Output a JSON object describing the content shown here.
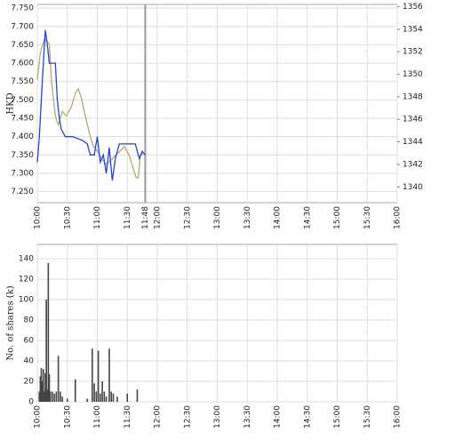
{
  "chart_data": [
    {
      "type": "line",
      "y_label": "HKD",
      "current_time": "11:48",
      "xlim": [
        "10:00",
        "16:00"
      ],
      "xticks": [
        "10:00",
        "10:30",
        "11:00",
        "11:30",
        "12:00",
        "12:30",
        "13:00",
        "13:30",
        "14:00",
        "14:30",
        "15:00",
        "15:30",
        "16:00"
      ],
      "ylim": [
        7.22,
        7.76
      ],
      "yticks": [
        {
          "value": 7.25,
          "label": "7.250"
        },
        {
          "value": 7.3,
          "label": "7.300"
        },
        {
          "value": 7.35,
          "label": "7.350"
        },
        {
          "value": 7.4,
          "label": "7.400"
        },
        {
          "value": 7.45,
          "label": "7.450"
        },
        {
          "value": 7.5,
          "label": "7.500"
        },
        {
          "value": 7.55,
          "label": "7.550"
        },
        {
          "value": 7.6,
          "label": "7.600"
        },
        {
          "value": 7.65,
          "label": "7.650"
        },
        {
          "value": 7.7,
          "label": "7.700"
        },
        {
          "value": 7.75,
          "label": "7.750"
        }
      ],
      "y2lim": [
        1338.6,
        1356.2
      ],
      "y2ticks": [
        1340,
        1342,
        1344,
        1346,
        1348,
        1350,
        1352,
        1354,
        1356
      ],
      "grid": true,
      "series": [
        {
          "color": "#b5a86a",
          "axis": "y2",
          "x": [
            "10:00",
            "10:03",
            "10:07",
            "10:12",
            "10:14",
            "10:18",
            "10:21",
            "10:25",
            "10:29",
            "10:34",
            "10:38",
            "10:41",
            "10:44",
            "10:47",
            "10:52",
            "10:56",
            "11:00",
            "11:05",
            "11:09",
            "11:14",
            "11:18",
            "11:23",
            "11:27",
            "11:32",
            "11:36",
            "11:39",
            "11:41",
            "11:43",
            "11:48"
          ],
          "values": [
            1349.5,
            1351.9,
            1353.1,
            1352.7,
            1349.5,
            1346.3,
            1345.5,
            1346.7,
            1346.3,
            1347.1,
            1348.3,
            1348.7,
            1347.9,
            1346.7,
            1344.8,
            1343.6,
            1343.2,
            1342.4,
            1342.0,
            1342.4,
            1342.8,
            1343.2,
            1343.6,
            1342.8,
            1341.6,
            1340.8,
            1340.8,
            1342.8,
            1343.0
          ]
        },
        {
          "color": "#2244dd",
          "x": [
            "10:00",
            "10:02",
            "10:05",
            "10:08",
            "10:10",
            "10:12",
            "10:15",
            "10:18",
            "10:20",
            "10:22",
            "10:24",
            "10:28",
            "10:35",
            "10:45",
            "10:50",
            "10:53",
            "10:57",
            "11:00",
            "11:03",
            "11:06",
            "11:09",
            "11:12",
            "11:15",
            "11:18",
            "11:22",
            "11:30",
            "11:38",
            "11:42",
            "11:45",
            "11:48"
          ],
          "values": [
            7.33,
            7.4,
            7.55,
            7.69,
            7.65,
            7.6,
            7.6,
            7.6,
            7.5,
            7.45,
            7.42,
            7.4,
            7.4,
            7.39,
            7.38,
            7.35,
            7.35,
            7.4,
            7.33,
            7.35,
            7.3,
            7.37,
            7.28,
            7.34,
            7.38,
            7.38,
            7.38,
            7.34,
            7.36,
            7.35
          ]
        }
      ]
    },
    {
      "type": "bar",
      "y_label": "No. of shares (k)",
      "xlim": [
        "10:00",
        "16:00"
      ],
      "xticks": [
        "10:00",
        "10:30",
        "11:00",
        "11:30",
        "12:00",
        "12:30",
        "13:00",
        "13:30",
        "14:00",
        "14:30",
        "15:00",
        "15:30",
        "16:00"
      ],
      "ylim": [
        0,
        154
      ],
      "yticks": [
        0,
        20,
        40,
        60,
        80,
        100,
        120,
        140
      ],
      "grid": true,
      "color": "#444444",
      "x": [
        "10:02",
        "10:03",
        "10:04",
        "10:05",
        "10:06",
        "10:07",
        "10:08",
        "10:09",
        "10:10",
        "10:11",
        "10:12",
        "10:13",
        "10:15",
        "10:17",
        "10:19",
        "10:21",
        "10:23",
        "10:25",
        "10:30",
        "10:38",
        "10:50",
        "10:55",
        "10:57",
        "10:59",
        "11:01",
        "11:03",
        "11:05",
        "11:07",
        "11:09",
        "11:12",
        "11:14",
        "11:16",
        "11:20",
        "11:30",
        "11:40"
      ],
      "values": [
        10,
        25,
        33,
        20,
        32,
        10,
        28,
        100,
        12,
        136,
        27,
        10,
        10,
        8,
        10,
        45,
        10,
        5,
        3,
        22,
        3,
        52,
        18,
        10,
        50,
        8,
        20,
        10,
        5,
        52,
        10,
        8,
        5,
        8,
        12
      ]
    }
  ]
}
